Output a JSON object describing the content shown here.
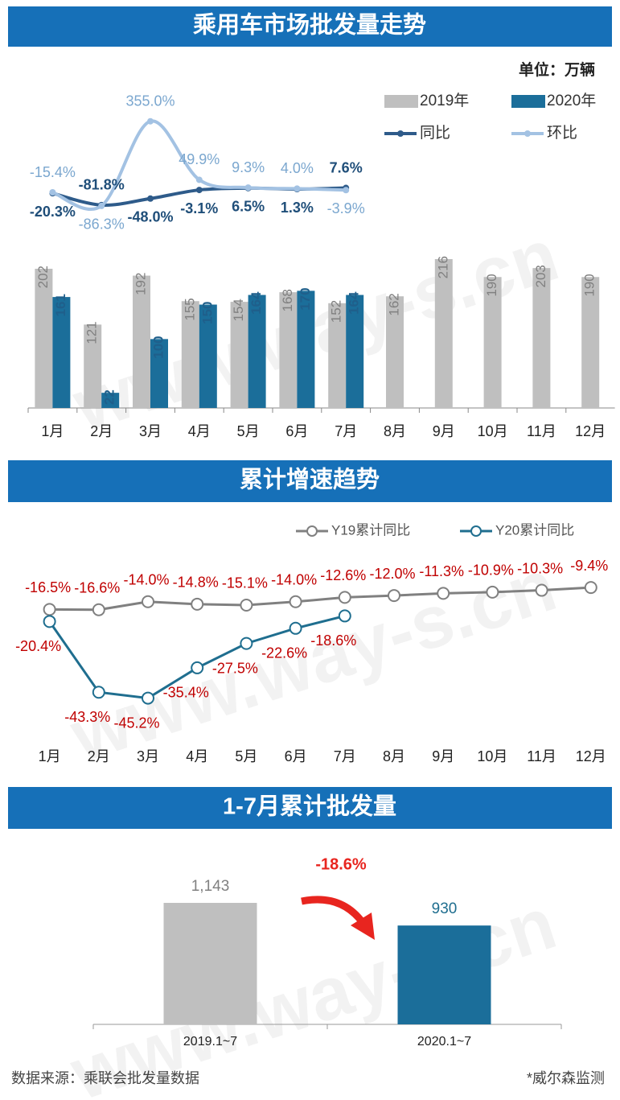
{
  "watermark": "www.way-s.cn",
  "footer": {
    "source": "数据来源：乘联会批发量数据",
    "credit": "*威尔森监测"
  },
  "chart_data": [
    {
      "type": "bar",
      "title": "乘用车市场批发量走势",
      "unit": "单位：万辆",
      "categories": [
        "1月",
        "2月",
        "3月",
        "4月",
        "5月",
        "6月",
        "7月",
        "8月",
        "9月",
        "10月",
        "11月",
        "12月"
      ],
      "ylim": [
        0,
        230
      ],
      "y2lim": [
        -200,
        400
      ],
      "series": [
        {
          "name": "2019年",
          "type": "bar",
          "color": "#bfbfbf",
          "values": [
            202,
            121,
            192,
            155,
            154,
            168,
            152,
            162,
            216,
            190,
            203,
            190
          ]
        },
        {
          "name": "2020年",
          "type": "bar",
          "color": "#1b6e9a",
          "values": [
            161,
            22,
            100,
            150,
            164,
            170,
            164,
            null,
            null,
            null,
            null,
            null
          ]
        },
        {
          "name": "同比",
          "type": "line",
          "axis": "y2",
          "color": "#2e5b8a",
          "values": [
            -20.3,
            -81.8,
            -48.0,
            -3.1,
            6.5,
            1.3,
            7.6,
            null,
            null,
            null,
            null,
            null
          ],
          "value_labels": [
            "-20.3%",
            "-81.8%",
            "-48.0%",
            "-3.1%",
            "6.5%",
            "1.3%",
            "7.6%",
            null,
            null,
            null,
            null,
            null
          ]
        },
        {
          "name": "环比",
          "type": "line",
          "axis": "y2",
          "color": "#a3c2e3",
          "values": [
            -15.4,
            -86.3,
            355.0,
            49.9,
            9.3,
            4.0,
            -3.9,
            null,
            null,
            null,
            null,
            null
          ],
          "value_labels": [
            "-15.4%",
            "-86.3%",
            "355.0%",
            "49.9%",
            "9.3%",
            "4.0%",
            "-3.9%",
            null,
            null,
            null,
            null,
            null
          ]
        }
      ]
    },
    {
      "type": "line",
      "title": "累计增速趋势",
      "categories": [
        "1月",
        "2月",
        "3月",
        "4月",
        "5月",
        "6月",
        "7月",
        "8月",
        "9月",
        "10月",
        "11月",
        "12月"
      ],
      "ylim": [
        -50,
        0
      ],
      "series": [
        {
          "name": "Y19累计同比",
          "color": "#808080",
          "values": [
            -16.5,
            -16.6,
            -14.0,
            -14.8,
            -15.1,
            -14.0,
            -12.6,
            -12.0,
            -11.3,
            -10.9,
            -10.3,
            -9.4
          ],
          "value_labels": [
            "-16.5%",
            "-16.6%",
            "-14.0%",
            "-14.8%",
            "-15.1%",
            "-14.0%",
            "-12.6%",
            "-12.0%",
            "-11.3%",
            "-10.9%",
            "-10.3%",
            "-9.4%"
          ]
        },
        {
          "name": "Y20累计同比",
          "color": "#1f6e8f",
          "values": [
            -20.4,
            -43.3,
            -45.2,
            -35.4,
            -27.5,
            -22.6,
            -18.6,
            null,
            null,
            null,
            null,
            null
          ],
          "value_labels": [
            "-20.4%",
            "-43.3%",
            "-45.2%",
            "-35.4%",
            "-27.5%",
            "-22.6%",
            "-18.6%",
            null,
            null,
            null,
            null,
            null
          ]
        }
      ]
    },
    {
      "type": "bar",
      "title": "1-7月累计批发量",
      "annotation": "-18.6%",
      "categories": [
        "2019.1~7",
        "2020.1~7"
      ],
      "values": [
        1143,
        930
      ],
      "value_labels": [
        "1,143",
        "930"
      ],
      "colors": [
        "#bfbfbf",
        "#1b6e9a"
      ],
      "label_colors": [
        "#808080",
        "#1f6e8f"
      ],
      "ylim": [
        0,
        1200
      ]
    }
  ]
}
